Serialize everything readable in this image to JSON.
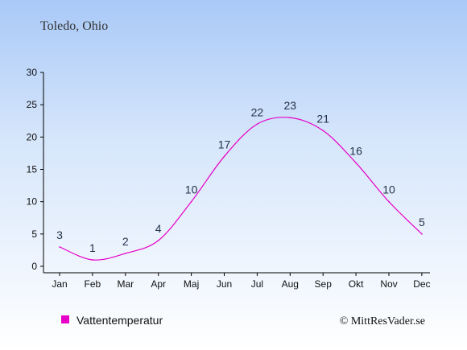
{
  "title": "Toledo, Ohio",
  "credit": "© MittResVader.se",
  "chart_data": {
    "type": "line",
    "title": "Toledo, Ohio",
    "xlabel": "",
    "ylabel": "",
    "categories": [
      "Jan",
      "Feb",
      "Mar",
      "Apr",
      "Maj",
      "Jun",
      "Jul",
      "Aug",
      "Sep",
      "Okt",
      "Nov",
      "Dec"
    ],
    "series": [
      {
        "name": "Vattentemperatur",
        "values": [
          3,
          1,
          2,
          4,
          10,
          17,
          22,
          23,
          21,
          16,
          10,
          5
        ],
        "color": "#e600c8"
      }
    ],
    "y_ticks": [
      0,
      5,
      10,
      15,
      20,
      25,
      30
    ],
    "ylim": [
      0,
      30
    ],
    "grid": false,
    "legend": "bottom-left"
  }
}
